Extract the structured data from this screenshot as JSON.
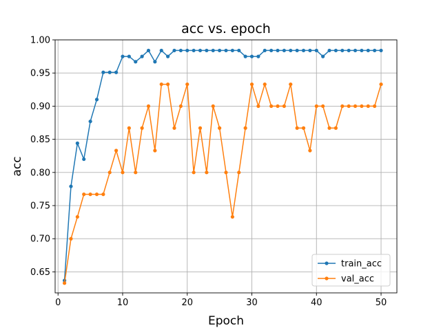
{
  "chart_data": {
    "type": "line",
    "title": "acc vs. epoch",
    "xlabel": "Epoch",
    "ylabel": "acc",
    "xlim": [
      -0.45,
      52.45
    ],
    "ylim": [
      0.6183,
      1.0
    ],
    "xticks": [
      0,
      10,
      20,
      30,
      40,
      50
    ],
    "xtick_labels": [
      "0",
      "10",
      "20",
      "30",
      "40",
      "50"
    ],
    "yticks": [
      0.65,
      0.7,
      0.75,
      0.8,
      0.85,
      0.9,
      0.95,
      1.0
    ],
    "ytick_labels": [
      "0.65",
      "0.70",
      "0.75",
      "0.80",
      "0.85",
      "0.90",
      "0.95",
      "1.00"
    ],
    "grid": true,
    "legend_position": "lower-right",
    "x": [
      1,
      2,
      3,
      4,
      5,
      6,
      7,
      8,
      9,
      10,
      11,
      12,
      13,
      14,
      15,
      16,
      17,
      18,
      19,
      20,
      21,
      22,
      23,
      24,
      25,
      26,
      27,
      28,
      29,
      30,
      31,
      32,
      33,
      34,
      35,
      36,
      37,
      38,
      39,
      40,
      41,
      42,
      43,
      44,
      45,
      46,
      47,
      48,
      49,
      50
    ],
    "series": [
      {
        "name": "train_acc",
        "color": "#1f77b4",
        "values": [
          0.637,
          0.779,
          0.844,
          0.82,
          0.877,
          0.91,
          0.951,
          0.951,
          0.951,
          0.975,
          0.975,
          0.967,
          0.975,
          0.984,
          0.967,
          0.984,
          0.975,
          0.984,
          0.984,
          0.984,
          0.984,
          0.984,
          0.984,
          0.984,
          0.984,
          0.984,
          0.984,
          0.984,
          0.975,
          0.975,
          0.975,
          0.984,
          0.984,
          0.984,
          0.984,
          0.984,
          0.984,
          0.984,
          0.984,
          0.984,
          0.975,
          0.984,
          0.984,
          0.984,
          0.984,
          0.984,
          0.984,
          0.984,
          0.984,
          0.984
        ]
      },
      {
        "name": "val_acc",
        "color": "#ff7f0e",
        "values": [
          0.633,
          0.7,
          0.733,
          0.767,
          0.767,
          0.767,
          0.767,
          0.8,
          0.833,
          0.8,
          0.867,
          0.8,
          0.867,
          0.9,
          0.833,
          0.933,
          0.933,
          0.867,
          0.9,
          0.933,
          0.8,
          0.867,
          0.8,
          0.9,
          0.867,
          0.8,
          0.733,
          0.8,
          0.867,
          0.933,
          0.9,
          0.933,
          0.9,
          0.9,
          0.9,
          0.933,
          0.867,
          0.867,
          0.833,
          0.9,
          0.9,
          0.867,
          0.867,
          0.9,
          0.9,
          0.9,
          0.9,
          0.9,
          0.9,
          0.933
        ]
      }
    ]
  }
}
